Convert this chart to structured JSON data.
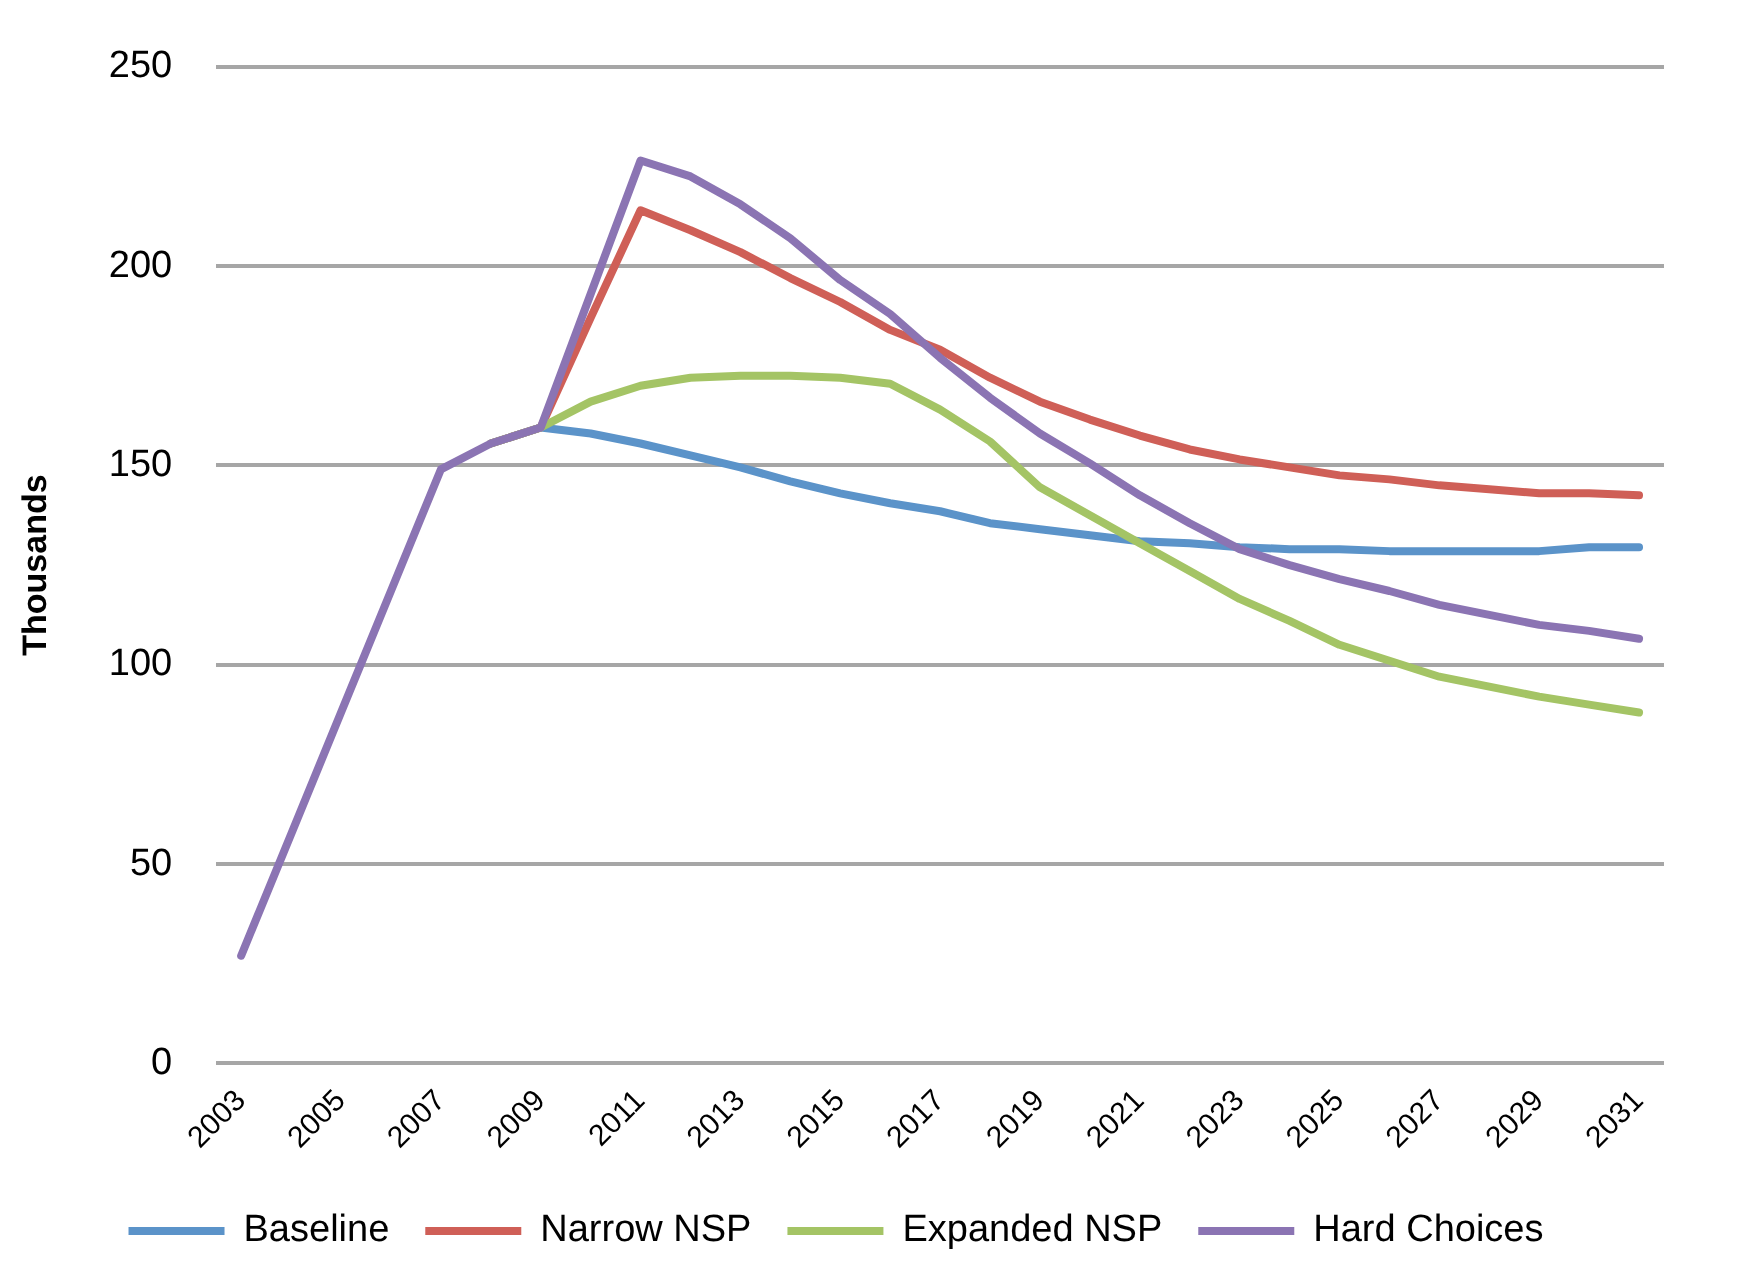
{
  "chart_data": {
    "type": "line",
    "ylabel": "Thousands",
    "categories": [
      "2003",
      null,
      "2005",
      null,
      "2007",
      null,
      "2009",
      null,
      "2011",
      null,
      "2013",
      null,
      "2015",
      null,
      "2017",
      null,
      "2019",
      null,
      "2021",
      null,
      "2023",
      null,
      "2025",
      null,
      "2027",
      null,
      "2029",
      null,
      "2031"
    ],
    "series": [
      {
        "name": "Baseline",
        "color": "#5b93c9",
        "values": [
          null,
          null,
          null,
          null,
          null,
          155.5,
          159.5,
          158,
          155.5,
          152.5,
          149.5,
          146,
          143,
          140.5,
          138.5,
          135.5,
          134,
          132.5,
          131,
          130.5,
          129.5,
          129,
          129,
          128.5,
          128.5,
          128.5,
          128.5,
          129.5,
          129.5
        ]
      },
      {
        "name": "Narrow NSP",
        "color": "#cf5f57",
        "values": [
          null,
          null,
          null,
          null,
          null,
          155.5,
          159.5,
          187,
          214,
          209,
          203.5,
          197,
          191,
          184,
          179,
          172,
          166,
          161.5,
          157.5,
          154,
          151.5,
          149.5,
          147.5,
          146.5,
          145,
          144,
          143,
          143,
          142.5
        ]
      },
      {
        "name": "Expanded NSP",
        "color": "#a4c465",
        "values": [
          null,
          null,
          null,
          null,
          null,
          155.5,
          159.5,
          166,
          170,
          172,
          172.5,
          172.5,
          172,
          170.5,
          164,
          156,
          144.5,
          137.5,
          130.5,
          123.5,
          116.5,
          111,
          105,
          101,
          97,
          94.5,
          92,
          90,
          88
        ]
      },
      {
        "name": "Hard Choices",
        "color": "#8b74b3",
        "values": [
          27,
          57.5,
          88,
          118.5,
          149,
          155.5,
          159.5,
          193,
          226.5,
          222.5,
          215.5,
          207,
          196.5,
          188,
          177,
          167,
          158,
          150.5,
          142.5,
          135.5,
          129,
          125,
          121.5,
          118.5,
          115,
          112.5,
          110,
          108.5,
          106.5
        ]
      }
    ],
    "ylim": [
      0,
      250
    ],
    "yticks": [
      0,
      50,
      100,
      150,
      200,
      250
    ],
    "grid": "y",
    "legend": "bottom",
    "marker": "none",
    "line_style": "solid"
  }
}
